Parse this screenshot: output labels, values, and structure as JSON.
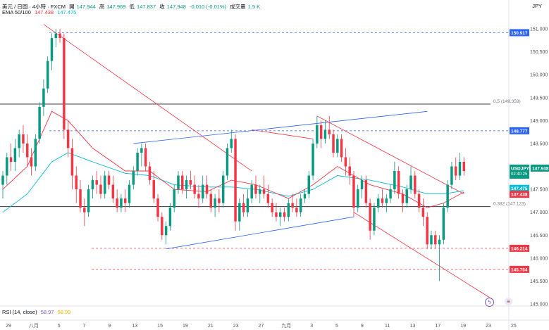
{
  "header": {
    "symbol": "美元 / 日圆 · 4小時 · FXCM",
    "open_label": "開",
    "open": "147.944",
    "high_label": "高",
    "high": "147.969",
    "low_label": "低",
    "low": "147.837",
    "close_label": "收",
    "close": "147.948",
    "change": "-0.010 (-0.01%)",
    "volume_label": "成交量",
    "volume": "1.5 K",
    "ema_label": "EMA 50/100",
    "ema_fast": "147.438",
    "ema_slow": "147.475",
    "rsi_label": "RSI (14, close)",
    "rsi_value": "58.97",
    "rsi_ma": "58.99"
  },
  "currency": "JPY",
  "colors": {
    "up": "#089981",
    "down": "#f23645",
    "ema_fast": "#f23645",
    "ema_slow": "#00bcd4",
    "trend_red": "#f23645",
    "trend_blue": "#2962ff",
    "dashed": "#f23645",
    "fib_line": "#131722"
  },
  "chart_data": {
    "type": "candlestick",
    "y_axis": {
      "min": 145.0,
      "max": 151.2,
      "ticks": [
        "151.000",
        "150.500",
        "150.000",
        "149.500",
        "149.000",
        "148.500",
        "148.000",
        "147.500",
        "147.000",
        "146.500",
        "146.000",
        "145.500",
        "145.000"
      ]
    },
    "x_axis": {
      "ticks": [
        "29",
        "八月",
        "5",
        "7",
        "9",
        "13",
        "15",
        "19",
        "21",
        "23",
        "27",
        "九月",
        "3",
        "5",
        "9",
        "11",
        "13",
        "17",
        "19",
        "23",
        "25"
      ]
    },
    "levels": [
      {
        "value": 150.917,
        "label": "150.917",
        "style": "dashed-blue"
      },
      {
        "value": 148.777,
        "label": "148.777",
        "style": "dashed-blue"
      },
      {
        "value": 146.214,
        "label": "146.214",
        "style": "dashed-red"
      },
      {
        "value": 145.754,
        "label": "145.754",
        "style": "dashed-red"
      }
    ],
    "fib": [
      {
        "value": 149.359,
        "label": "0.5 (149.359)"
      },
      {
        "value": 147.123,
        "label": "0.382 (147.123)"
      }
    ],
    "price_tags": [
      {
        "value": 147.948,
        "label": "USDJPY",
        "sub": "147.948",
        "time": "02:40:25"
      },
      {
        "value": 147.475,
        "label": "147.475"
      },
      {
        "value": 147.438,
        "label": "147.438"
      }
    ],
    "candles": [
      [
        0,
        147.6,
        147.9,
        147.3,
        147.8
      ],
      [
        1,
        147.8,
        148.3,
        147.6,
        148.2
      ],
      [
        2,
        148.2,
        148.5,
        147.9,
        148.1
      ],
      [
        3,
        148.1,
        148.6,
        147.9,
        148.4
      ],
      [
        4,
        148.4,
        148.8,
        148.2,
        148.7
      ],
      [
        5,
        148.7,
        148.9,
        148.3,
        148.5
      ],
      [
        6,
        148.5,
        148.7,
        148.0,
        148.2
      ],
      [
        7,
        148.2,
        148.4,
        147.8,
        148.0
      ],
      [
        8,
        148.0,
        148.7,
        147.9,
        148.6
      ],
      [
        9,
        148.6,
        149.4,
        148.5,
        149.3
      ],
      [
        10,
        149.3,
        149.9,
        149.1,
        149.7
      ],
      [
        11,
        149.7,
        150.4,
        149.6,
        150.3
      ],
      [
        12,
        150.3,
        150.9,
        150.1,
        150.8
      ],
      [
        13,
        150.8,
        151.0,
        150.6,
        150.9
      ],
      [
        14,
        150.9,
        151.0,
        150.7,
        150.8
      ],
      [
        15,
        150.8,
        150.9,
        148.6,
        148.8
      ],
      [
        16,
        148.8,
        149.0,
        148.2,
        148.4
      ],
      [
        17,
        148.4,
        148.6,
        147.5,
        147.8
      ],
      [
        18,
        147.8,
        148.0,
        147.2,
        147.5
      ],
      [
        19,
        147.5,
        147.7,
        147.0,
        147.1
      ],
      [
        20,
        147.1,
        147.3,
        146.7,
        147.0
      ],
      [
        21,
        147.0,
        147.6,
        146.9,
        147.5
      ],
      [
        22,
        147.5,
        147.8,
        147.3,
        147.7
      ],
      [
        23,
        147.7,
        147.9,
        147.4,
        147.6
      ],
      [
        24,
        147.6,
        147.8,
        147.3,
        147.4
      ],
      [
        25,
        147.4,
        147.9,
        147.3,
        147.8
      ],
      [
        26,
        147.8,
        147.9,
        147.5,
        147.6
      ],
      [
        27,
        147.6,
        147.8,
        147.2,
        147.3
      ],
      [
        28,
        147.3,
        147.5,
        147.0,
        147.1
      ],
      [
        29,
        147.1,
        147.4,
        147.0,
        147.3
      ],
      [
        30,
        147.3,
        147.5,
        147.0,
        147.2
      ],
      [
        31,
        147.2,
        147.7,
        147.1,
        147.6
      ],
      [
        32,
        147.6,
        148.0,
        147.5,
        147.9
      ],
      [
        33,
        147.9,
        148.4,
        147.8,
        148.3
      ],
      [
        34,
        148.3,
        148.5,
        148.0,
        148.4
      ],
      [
        35,
        148.4,
        148.5,
        147.9,
        148.0
      ],
      [
        36,
        148.0,
        148.1,
        147.6,
        147.7
      ],
      [
        37,
        147.7,
        147.9,
        147.2,
        147.3
      ],
      [
        38,
        147.3,
        147.4,
        146.8,
        146.9
      ],
      [
        39,
        146.9,
        147.0,
        146.4,
        146.5
      ],
      [
        40,
        146.5,
        146.8,
        146.3,
        146.7
      ],
      [
        41,
        146.7,
        147.2,
        146.6,
        147.1
      ],
      [
        42,
        147.1,
        147.6,
        147.0,
        147.5
      ],
      [
        43,
        147.5,
        147.9,
        147.4,
        147.8
      ],
      [
        44,
        147.8,
        147.9,
        147.4,
        147.5
      ],
      [
        45,
        147.5,
        147.8,
        147.3,
        147.7
      ],
      [
        46,
        147.7,
        147.9,
        147.5,
        147.6
      ],
      [
        47,
        147.6,
        147.8,
        147.3,
        147.4
      ],
      [
        48,
        147.4,
        147.6,
        147.1,
        147.3
      ],
      [
        49,
        147.3,
        147.8,
        147.2,
        147.6
      ],
      [
        50,
        147.6,
        147.8,
        147.3,
        147.4
      ],
      [
        51,
        147.4,
        147.5,
        147.0,
        147.1
      ],
      [
        52,
        147.1,
        147.4,
        146.9,
        147.3
      ],
      [
        53,
        147.3,
        147.5,
        147.0,
        147.2
      ],
      [
        54,
        147.2,
        147.9,
        147.1,
        147.8
      ],
      [
        55,
        147.8,
        148.5,
        147.7,
        148.4
      ],
      [
        56,
        148.4,
        148.8,
        148.3,
        148.6
      ],
      [
        57,
        148.6,
        148.7,
        146.6,
        146.8
      ],
      [
        58,
        146.8,
        147.3,
        146.6,
        147.2
      ],
      [
        59,
        147.2,
        147.4,
        146.9,
        147.0
      ],
      [
        60,
        147.0,
        147.5,
        146.9,
        147.3
      ],
      [
        61,
        147.3,
        147.7,
        147.2,
        147.6
      ],
      [
        62,
        147.6,
        147.8,
        147.3,
        147.4
      ],
      [
        63,
        147.4,
        147.6,
        147.2,
        147.5
      ],
      [
        64,
        147.5,
        147.8,
        147.3,
        147.4
      ],
      [
        65,
        147.4,
        147.6,
        147.1,
        147.2
      ],
      [
        66,
        147.2,
        147.3,
        146.9,
        147.0
      ],
      [
        67,
        147.0,
        147.2,
        146.8,
        146.9
      ],
      [
        68,
        146.9,
        147.1,
        146.7,
        147.0
      ],
      [
        69,
        147.0,
        147.1,
        146.8,
        146.9
      ],
      [
        70,
        146.9,
        147.3,
        146.8,
        147.2
      ],
      [
        71,
        147.2,
        147.4,
        147.0,
        147.1
      ],
      [
        72,
        147.1,
        147.3,
        146.9,
        147.0
      ],
      [
        73,
        147.0,
        147.4,
        146.9,
        147.3
      ],
      [
        74,
        147.3,
        147.5,
        147.2,
        147.4
      ],
      [
        75,
        147.4,
        147.9,
        147.3,
        147.8
      ],
      [
        76,
        147.8,
        148.6,
        147.7,
        148.5
      ],
      [
        77,
        148.5,
        149.1,
        148.4,
        148.9
      ],
      [
        78,
        148.9,
        149.0,
        148.4,
        148.6
      ],
      [
        79,
        148.6,
        149.0,
        148.5,
        148.8
      ],
      [
        80,
        148.8,
        149.1,
        148.6,
        148.7
      ],
      [
        81,
        148.7,
        148.8,
        148.2,
        148.3
      ],
      [
        82,
        148.3,
        148.7,
        148.2,
        148.6
      ],
      [
        83,
        148.6,
        148.7,
        148.1,
        148.2
      ],
      [
        84,
        148.2,
        148.4,
        147.8,
        148.0
      ],
      [
        85,
        148.0,
        148.2,
        147.6,
        147.8
      ],
      [
        86,
        147.8,
        147.9,
        146.9,
        147.1
      ],
      [
        87,
        147.1,
        147.6,
        147.0,
        147.5
      ],
      [
        88,
        147.5,
        147.8,
        147.3,
        147.7
      ],
      [
        89,
        147.7,
        147.8,
        147.1,
        147.2
      ],
      [
        90,
        147.2,
        147.3,
        146.4,
        146.6
      ],
      [
        91,
        146.6,
        147.2,
        146.5,
        147.1
      ],
      [
        92,
        147.1,
        147.4,
        147.0,
        147.3
      ],
      [
        93,
        147.3,
        147.5,
        147.1,
        147.2
      ],
      [
        94,
        147.2,
        147.4,
        147.0,
        147.3
      ],
      [
        95,
        147.3,
        147.6,
        147.2,
        147.5
      ],
      [
        96,
        147.5,
        148.1,
        147.4,
        147.9
      ],
      [
        97,
        147.9,
        148.0,
        147.3,
        147.4
      ],
      [
        98,
        147.4,
        147.5,
        147.0,
        147.2
      ],
      [
        99,
        147.2,
        147.6,
        147.1,
        147.5
      ],
      [
        100,
        147.5,
        148.0,
        147.4,
        147.8
      ],
      [
        101,
        147.8,
        147.9,
        147.3,
        147.4
      ],
      [
        102,
        147.4,
        147.5,
        147.0,
        147.1
      ],
      [
        103,
        147.1,
        147.3,
        146.7,
        146.9
      ],
      [
        104,
        146.9,
        147.0,
        146.2,
        146.3
      ],
      [
        105,
        146.3,
        146.6,
        146.2,
        146.5
      ],
      [
        106,
        146.5,
        146.6,
        146.2,
        146.3
      ],
      [
        107,
        146.3,
        146.5,
        145.5,
        146.4
      ],
      [
        108,
        146.4,
        147.2,
        146.3,
        147.1
      ],
      [
        109,
        147.1,
        147.7,
        147.0,
        147.6
      ],
      [
        110,
        147.6,
        148.1,
        147.5,
        148.0
      ],
      [
        111,
        148.0,
        148.2,
        147.7,
        147.8
      ],
      [
        112,
        147.8,
        148.3,
        147.7,
        148.1
      ],
      [
        113,
        148.1,
        148.2,
        147.8,
        147.9
      ]
    ],
    "ema_fast": [
      [
        0,
        147.5
      ],
      [
        6,
        148.0
      ],
      [
        12,
        149.2
      ],
      [
        16,
        149.0
      ],
      [
        22,
        148.4
      ],
      [
        30,
        147.9
      ],
      [
        36,
        147.9
      ],
      [
        42,
        147.5
      ],
      [
        50,
        147.45
      ],
      [
        56,
        147.7
      ],
      [
        62,
        147.6
      ],
      [
        70,
        147.3
      ],
      [
        76,
        147.6
      ],
      [
        82,
        148.0
      ],
      [
        90,
        147.6
      ],
      [
        98,
        147.4
      ],
      [
        104,
        147.1
      ],
      [
        108,
        147.2
      ],
      [
        113,
        147.44
      ]
    ],
    "ema_slow": [
      [
        0,
        147.0
      ],
      [
        6,
        147.4
      ],
      [
        12,
        148.1
      ],
      [
        16,
        148.3
      ],
      [
        22,
        148.1
      ],
      [
        30,
        147.85
      ],
      [
        36,
        147.8
      ],
      [
        42,
        147.6
      ],
      [
        50,
        147.55
      ],
      [
        56,
        147.55
      ],
      [
        62,
        147.5
      ],
      [
        70,
        147.35
      ],
      [
        76,
        147.5
      ],
      [
        82,
        147.8
      ],
      [
        90,
        147.7
      ],
      [
        98,
        147.55
      ],
      [
        104,
        147.4
      ],
      [
        108,
        147.4
      ],
      [
        113,
        147.47
      ]
    ]
  },
  "toolbar": {
    "replay_icon": "bolt-icon",
    "flag_icon": "us-flag-icon"
  }
}
